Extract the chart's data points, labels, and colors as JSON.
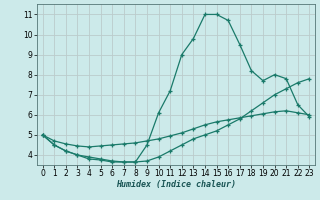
{
  "xlabel": "Humidex (Indice chaleur)",
  "background_color": "#cceaea",
  "grid_color": "#bbcccc",
  "line_color": "#1a7a6a",
  "xlim": [
    -0.5,
    23.5
  ],
  "ylim": [
    3.5,
    11.5
  ],
  "xticks": [
    0,
    1,
    2,
    3,
    4,
    5,
    6,
    7,
    8,
    9,
    10,
    11,
    12,
    13,
    14,
    15,
    16,
    17,
    18,
    19,
    20,
    21,
    22,
    23
  ],
  "yticks": [
    4,
    5,
    6,
    7,
    8,
    9,
    10,
    11
  ],
  "line1_x": [
    0,
    1,
    2,
    3,
    4,
    5,
    6,
    7,
    8,
    9,
    10,
    11,
    12,
    13,
    14,
    15,
    16,
    17,
    18,
    19,
    20,
    21,
    22,
    23
  ],
  "line1_y": [
    5.0,
    4.5,
    4.2,
    4.0,
    3.8,
    3.75,
    3.65,
    3.65,
    3.65,
    4.5,
    6.1,
    7.2,
    9.0,
    9.8,
    11.0,
    11.0,
    10.7,
    9.5,
    8.2,
    7.7,
    8.0,
    7.8,
    6.5,
    5.9
  ],
  "line2_x": [
    0,
    1,
    2,
    3,
    4,
    5,
    6,
    7,
    8,
    9,
    10,
    11,
    12,
    13,
    14,
    15,
    16,
    17,
    18,
    19,
    20,
    21,
    22,
    23
  ],
  "line2_y": [
    5.0,
    4.7,
    4.55,
    4.45,
    4.4,
    4.45,
    4.5,
    4.55,
    4.6,
    4.7,
    4.8,
    4.95,
    5.1,
    5.3,
    5.5,
    5.65,
    5.75,
    5.85,
    5.95,
    6.05,
    6.15,
    6.2,
    6.1,
    6.0
  ],
  "line3_x": [
    0,
    1,
    2,
    3,
    4,
    5,
    6,
    7,
    8,
    9,
    10,
    11,
    12,
    13,
    14,
    15,
    16,
    17,
    18,
    19,
    20,
    21,
    22,
    23
  ],
  "line3_y": [
    5.0,
    4.5,
    4.2,
    4.0,
    3.9,
    3.8,
    3.7,
    3.65,
    3.65,
    3.7,
    3.9,
    4.2,
    4.5,
    4.8,
    5.0,
    5.2,
    5.5,
    5.8,
    6.2,
    6.6,
    7.0,
    7.3,
    7.6,
    7.8
  ]
}
